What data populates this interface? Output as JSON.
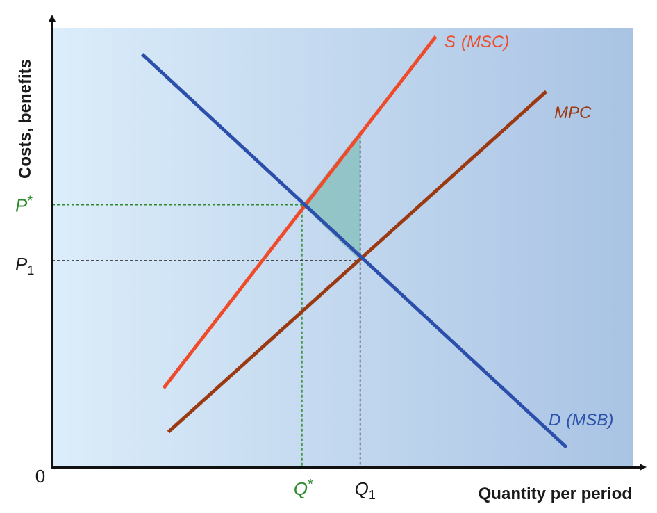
{
  "chart_data": {
    "type": "line",
    "title": "",
    "xlabel": "Quantity per period",
    "ylabel": "Costs, benefits",
    "origin_label": "0",
    "xlim": [
      0,
      10
    ],
    "ylim": [
      0,
      10
    ],
    "series": [
      {
        "name": "S (MSC)",
        "label_main": "S",
        "label_paren": "(MSC)",
        "color": "#ee4b2b",
        "points": [
          [
            1.92,
            1.8
          ],
          [
            6.6,
            9.8
          ]
        ]
      },
      {
        "name": "MPC",
        "label_main": "MPC",
        "label_paren": "",
        "color": "#9b3a12",
        "points": [
          [
            2.0,
            0.8
          ],
          [
            8.5,
            8.55
          ]
        ]
      },
      {
        "name": "D (MSB)",
        "label_main": "D",
        "label_paren": "(MSB)",
        "color": "#2b4faa",
        "points": [
          [
            1.55,
            9.4
          ],
          [
            8.85,
            0.45
          ]
        ]
      }
    ],
    "reference_levels": {
      "P_star": {
        "text": "P",
        "sup": "*",
        "y": 5.97,
        "color": "#2f8a2f"
      },
      "P1": {
        "text": "P",
        "sub": "1",
        "y": 4.7,
        "color": "#1a1a1a"
      },
      "Q_star": {
        "text": "Q",
        "sup": "*",
        "x": 4.3,
        "color": "#2f8a2f"
      },
      "Q1": {
        "text": "Q",
        "sub": "1",
        "x": 5.3,
        "color": "#1a1a1a"
      }
    },
    "deadweight_loss": {
      "color": "#8ec2c2",
      "vertices": [
        [
          4.3,
          5.97
        ],
        [
          5.3,
          7.65
        ],
        [
          5.3,
          4.7
        ]
      ]
    },
    "background": {
      "from": "#dcedfa",
      "to": "#a9c3e4"
    },
    "grid": false,
    "legend": "none"
  }
}
